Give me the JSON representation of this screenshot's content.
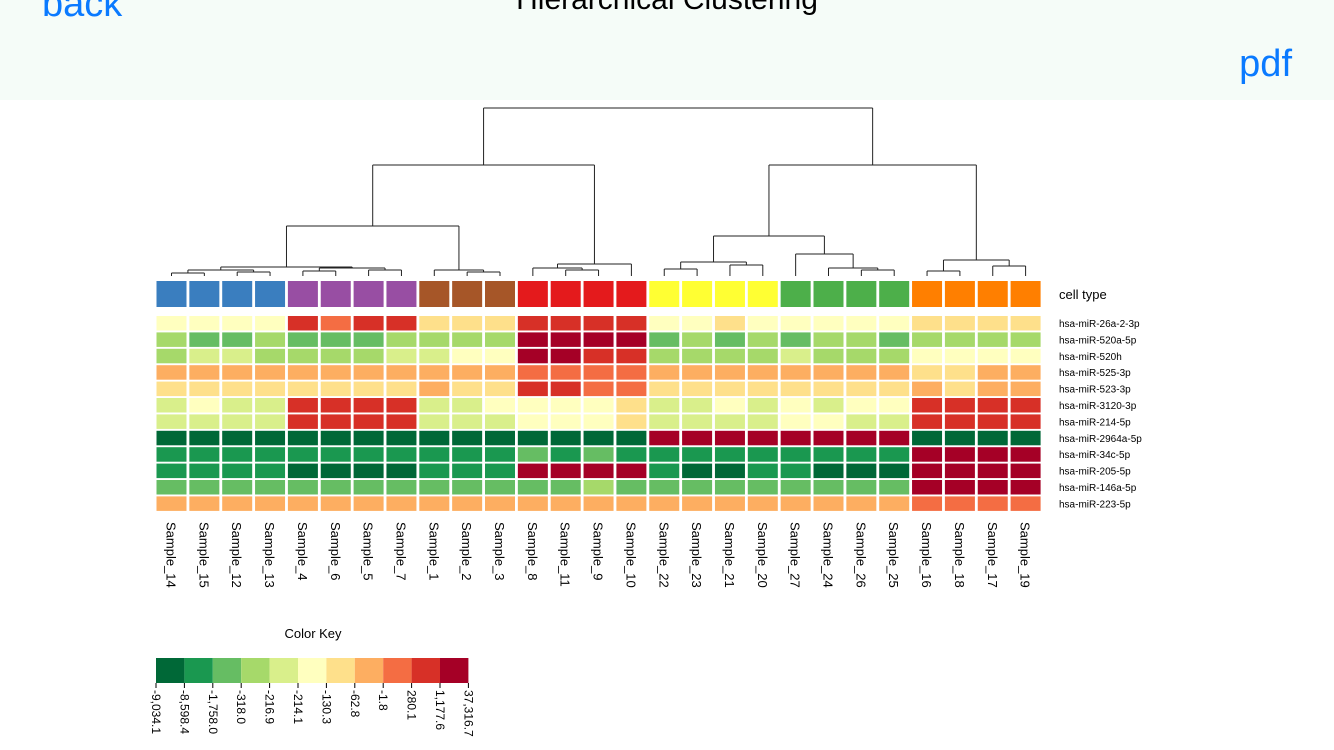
{
  "nav": {
    "back_label": "back",
    "title": "Hierarchical Clustering",
    "pdf_label": "pdf"
  },
  "chart_data": {
    "type": "heatmap",
    "samples": [
      "Sample_14",
      "Sample_15",
      "Sample_12",
      "Sample_13",
      "Sample_4",
      "Sample_6",
      "Sample_5",
      "Sample_7",
      "Sample_1",
      "Sample_2",
      "Sample_3",
      "Sample_8",
      "Sample_11",
      "Sample_9",
      "Sample_10",
      "Sample_22",
      "Sample_23",
      "Sample_21",
      "Sample_20",
      "Sample_27",
      "Sample_24",
      "Sample_26",
      "Sample_25",
      "Sample_16",
      "Sample_18",
      "Sample_17",
      "Sample_19"
    ],
    "genes": [
      "hsa-miR-26a-2-3p",
      "hsa-miR-520a-5p",
      "hsa-miR-520h",
      "hsa-miR-525-3p",
      "hsa-miR-523-3p",
      "hsa-miR-3120-3p",
      "hsa-miR-214-5p",
      "hsa-miR-2964a-5p",
      "hsa-miR-34c-5p",
      "hsa-miR-205-5p",
      "hsa-miR-146a-5p",
      "hsa-miR-223-5p"
    ],
    "annotation_label": "cell type",
    "cell_type_groups": [
      {
        "color": "#3a7ebf",
        "count": 4
      },
      {
        "color": "#984ea3",
        "count": 4
      },
      {
        "color": "#a65628",
        "count": 3
      },
      {
        "color": "#e41a1c",
        "count": 4
      },
      {
        "color": "#ffff33",
        "count": 4
      },
      {
        "color": "#4daf4a",
        "count": 4
      },
      {
        "color": "#ff7f00",
        "count": 4
      }
    ],
    "color_key": {
      "title": "Color Key",
      "colors": [
        "#006837",
        "#1a9850",
        "#66bd63",
        "#a6d96a",
        "#d9ef8b",
        "#ffffbf",
        "#fee08b",
        "#fdae61",
        "#f46d43",
        "#d73027",
        "#a50026"
      ],
      "breaks": [
        "-9,034.1",
        "-8,598.4",
        "-1,758.0",
        "-318.0",
        "-216.9",
        "-214.1",
        "-130.3",
        "-62.8",
        "-1.8",
        "280.1",
        "1,177.6",
        "37,316.7"
      ]
    },
    "matrix": [
      [
        5,
        5,
        5,
        5,
        9,
        8,
        9,
        9,
        6,
        6,
        6,
        9,
        9,
        9,
        9,
        5,
        5,
        6,
        5,
        5,
        5,
        5,
        5,
        6,
        6,
        6,
        6
      ],
      [
        3,
        2,
        2,
        3,
        2,
        2,
        2,
        3,
        3,
        3,
        3,
        10,
        10,
        10,
        10,
        2,
        3,
        2,
        3,
        2,
        3,
        3,
        2,
        3,
        3,
        3,
        3
      ],
      [
        3,
        4,
        4,
        3,
        3,
        3,
        3,
        4,
        4,
        5,
        5,
        10,
        10,
        9,
        9,
        3,
        3,
        3,
        3,
        4,
        3,
        3,
        3,
        5,
        5,
        5,
        5
      ],
      [
        7,
        7,
        7,
        7,
        7,
        7,
        7,
        7,
        7,
        7,
        7,
        8,
        8,
        8,
        8,
        7,
        7,
        7,
        7,
        7,
        7,
        7,
        7,
        6,
        6,
        7,
        7
      ],
      [
        6,
        6,
        6,
        6,
        6,
        6,
        6,
        6,
        7,
        6,
        6,
        9,
        9,
        8,
        8,
        6,
        6,
        6,
        6,
        6,
        6,
        6,
        6,
        7,
        6,
        7,
        7
      ],
      [
        4,
        5,
        4,
        4,
        9,
        9,
        9,
        9,
        4,
        4,
        5,
        5,
        5,
        5,
        6,
        4,
        4,
        5,
        4,
        5,
        4,
        5,
        5,
        9,
        9,
        9,
        9
      ],
      [
        4,
        4,
        4,
        4,
        9,
        9,
        9,
        9,
        4,
        4,
        4,
        5,
        5,
        5,
        6,
        4,
        4,
        4,
        4,
        5,
        5,
        4,
        4,
        9,
        9,
        9,
        9
      ],
      [
        0,
        0,
        0,
        0,
        0,
        0,
        0,
        0,
        0,
        0,
        0,
        0,
        0,
        0,
        0,
        10,
        10,
        10,
        10,
        10,
        10,
        10,
        10,
        0,
        0,
        0,
        0
      ],
      [
        1,
        1,
        1,
        1,
        1,
        1,
        1,
        1,
        1,
        1,
        1,
        2,
        1,
        2,
        1,
        1,
        1,
        1,
        1,
        1,
        1,
        1,
        1,
        10,
        10,
        10,
        10
      ],
      [
        1,
        1,
        1,
        1,
        0,
        0,
        0,
        0,
        1,
        1,
        1,
        10,
        10,
        10,
        10,
        1,
        0,
        0,
        1,
        1,
        0,
        0,
        0,
        10,
        10,
        10,
        10
      ],
      [
        2,
        2,
        2,
        2,
        2,
        2,
        2,
        2,
        2,
        2,
        2,
        2,
        2,
        3,
        2,
        2,
        2,
        2,
        2,
        2,
        2,
        2,
        2,
        10,
        10,
        10,
        10
      ],
      [
        7,
        7,
        7,
        7,
        7,
        7,
        7,
        7,
        7,
        7,
        7,
        7,
        7,
        7,
        7,
        7,
        7,
        7,
        7,
        7,
        7,
        7,
        7,
        8,
        8,
        8,
        8
      ]
    ]
  }
}
